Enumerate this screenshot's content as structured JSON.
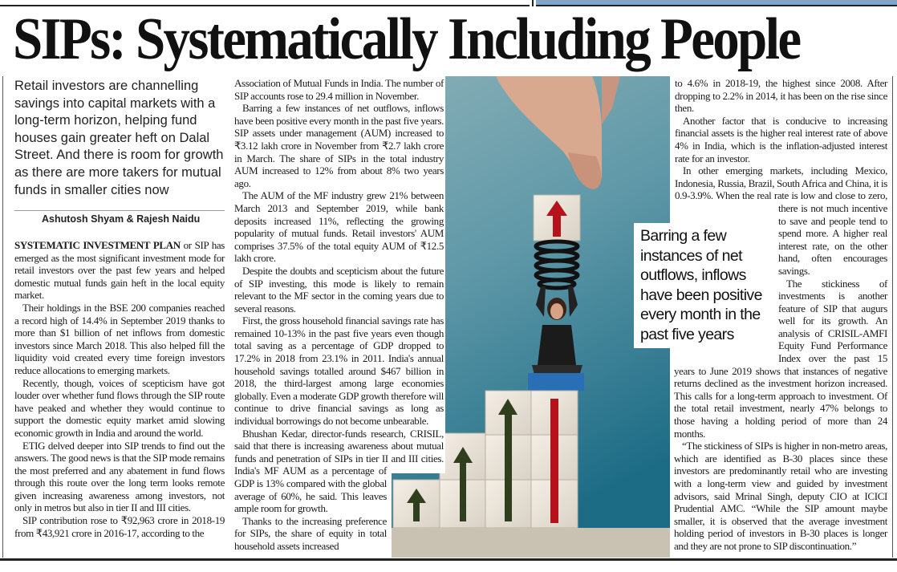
{
  "headline": "SIPs: Systematically Including People",
  "deck": "Retail investors are channelling savings into capital markets with a long-term horizon, helping fund houses gain greater heft on Dalal Street. And there is room for growth as there are more takers for mutual funds in smaller cities now",
  "byline": "Ashutosh Shyam & Rajesh Naidu",
  "pullquote": "Barring a few instances of net outflows, inflows have been positive every month in the past five years",
  "left_column": {
    "lead": "SYSTEMATIC INVESTMENT PLAN",
    "paragraphs": [
      " or SIP has emerged as the most significant investment mode for retail investors over the past few years and helped domestic mutual funds gain heft in the local equity market.",
      "Their holdings in the BSE 200 companies reached a record high of 14.4% in September 2019 thanks to more than $1 billion of net inflows from domestic investors since March 2018. This also helped fill the liquidity void created every time foreign investors reduce allocations to emerging markets.",
      "Recently, though, voices of scepticism have got louder over whether fund flows through the SIP route have peaked and whether they would continue to support the domestic equity market amid slowing economic growth in India and around the world.",
      "ETIG delved deeper into SIP trends to find out the answers. The good news is that the SIP mode remains the most preferred and any abatement in fund flows through this route over the long term looks remote given increasing awareness among investors, not only in metros but also in tier II and III cities.",
      "SIP contribution rose to ₹92,963 crore in 2018-19 from ₹43,921 crore in 2016-17, according to the"
    ]
  },
  "middle_column": {
    "paragraphs": [
      "Association of Mutual Funds in India. The number of SIP accounts rose to 29.4 million in November.",
      "Barring a few instances of net outflows, inflows have been positive every month in the past five years. SIP assets under management (AUM) increased to ₹3.12 lakh crore in November from ₹2.7 lakh crore in March. The share of SIPs in the total industry AUM increased to 12% from about 8% two years ago.",
      "The AUM of the MF industry grew 21% between March 2013 and September 2019, while bank deposits increased 11%, reflecting the growing popularity of mutual funds. Retail investors' AUM comprises 37.5% of the total equity AUM of ₹12.5 lakh crore.",
      "Despite the doubts and scepticism about the future of SIP investing, this mode is likely to remain relevant to the MF sector in the coming years due to several reasons.",
      "First, the gross household financial savings rate has remained 10-13% in the past five years even though total saving as a percentage of GDP dropped to 17.2% in 2018 from 23.1% in 2011. India's annual household savings totalled around $467 billion in 2018, the third-largest among large economies globally. Even a moderate GDP growth therefore will continue to drive financial savings as long as individual borrowings do not become unbearable.",
      "Bhushan Kedar, director-funds research, CRISIL, said that there is increasing awareness about mutual funds and penetration of SIPs in tier II and III cities. India's MF AUM as a percentage of GDP is 13% compared with the global average of 60%, he said. This leaves ample room for growth.",
      "Thanks to the increasing preference for SIPs, the share of equity in total household assets increased"
    ]
  },
  "right_column": {
    "paragraphs": [
      "to 4.6% in 2018-19, the highest since 2008. After dropping to 2.2% in 2014, it has been on the rise since then.",
      "Another factor that is conducive to increasing financial assets is the higher real interest rate of above 4% in India, which is the inflation-adjusted interest rate for an investor.",
      "In other emerging markets, including Mexico, Indonesia, Russia, Brazil, South Africa and China, it is 0.9-3.9%. When the real rate is low and close to zero, there is not much incentive to save and people tend to spend more. A higher real interest rate, on the other hand, often encourages savings.",
      "The stickiness of investments is another feature of SIP that augurs well for its growth. An analysis of CRISIL-AMFI Equity Fund Performance Index over the past 15 years to June 2019 shows that instances of negative returns declined as the investment horizon increased. This calls for a long-term approach to investment. Of the total retail investment, nearly 47% belongs to those having a holding period of more than 24 months.",
      "“The stickiness of SIPs is higher in non-metro areas, which are identified as B-30 places since these investors are predominantly retail who are investing with a long-term view and guided by investment advisors, said Mrinal Singh, deputy CIO at ICICI Prudential AMC. “While the SIP amount maybe smaller, it is observed that the average investment holding period of investors in B-30 places is longer and they are not prone to SIP discontinuation.”"
    ]
  },
  "colors": {
    "image_bg_top": "#7fa9b3",
    "image_bg_bottom": "#1d6c86",
    "arrow_red": "#b5121b",
    "arrow_green": "#2f3f1e",
    "top_strip_blue": "#7fa6c8"
  }
}
